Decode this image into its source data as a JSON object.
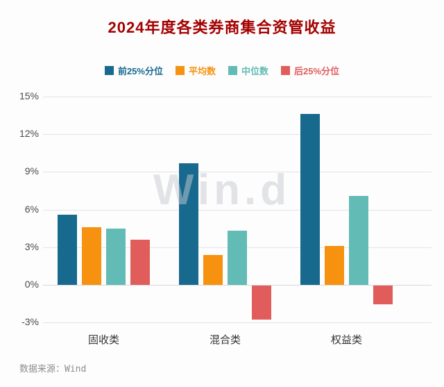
{
  "watermark": "Win.d",
  "footer": {
    "source": "数据来源：Wind"
  },
  "colors": {
    "title": "#a40000",
    "background": "#fdfdfd",
    "grid": "#e4e4e4",
    "axis_text": "#4a4a4a"
  },
  "chart_data": {
    "type": "bar",
    "title": "2024年度各类券商集合资管收益",
    "categories": [
      "固收类",
      "混合类",
      "权益类"
    ],
    "series": [
      {
        "name": "前25%分位",
        "color": "#17698e",
        "values": [
          5.6,
          9.7,
          13.6
        ]
      },
      {
        "name": "平均数",
        "color": "#f6920f",
        "values": [
          4.6,
          2.4,
          3.1
        ]
      },
      {
        "name": "中位数",
        "color": "#62bbb4",
        "values": [
          4.5,
          4.3,
          7.1
        ]
      },
      {
        "name": "后25%分位",
        "color": "#e15d5b",
        "values": [
          3.6,
          -2.7,
          -1.5
        ]
      }
    ],
    "xlabel": "",
    "ylabel": "",
    "ylim": [
      -3,
      15
    ],
    "y_ticks": [
      -3,
      0,
      3,
      6,
      9,
      12,
      15
    ],
    "y_tick_suffix": "%",
    "grid": true,
    "legend_position": "top"
  }
}
